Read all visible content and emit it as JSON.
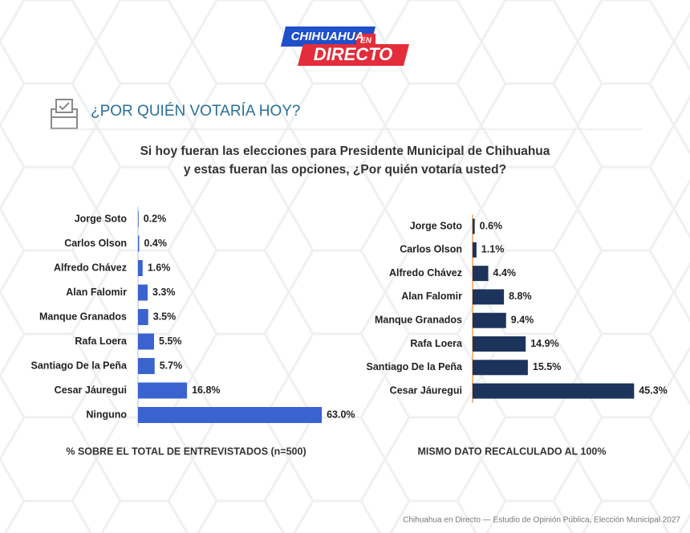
{
  "header": {
    "logo": {
      "line1": "CHIHUAHUA",
      "badge": "EN",
      "line2": "DIRECTO"
    },
    "section_title": "¿POR QUIÉN VOTARÍA HOY?",
    "question": [
      "Si hoy fueran las elecciones para Presidente Municipal de Chihuahua",
      "y estas fueran las opciones, ¿Por quién votaría usted?"
    ]
  },
  "chart_data": [
    {
      "type": "bar",
      "orientation": "horizontal",
      "caption": "% SOBRE EL TOTAL DE ENTREVISTADOS (n=500)",
      "categories": [
        "Jorge Soto",
        "Carlos Olson",
        "Alfredo Chávez",
        "Alan Falomir",
        "Manque Granados",
        "Rafa Loera",
        "Santiago De la Peña",
        "Cesar Jáuregui",
        "Ninguno"
      ],
      "values": [
        0.2,
        0.4,
        1.6,
        3.3,
        3.5,
        5.5,
        5.7,
        16.8,
        63.0
      ],
      "value_labels": [
        "0.2%",
        "0.4%",
        "1.6%",
        "3.3%",
        "3.5%",
        "5.5%",
        "5.7%",
        "16.8%",
        "63.0%"
      ],
      "color": "#3a63d0",
      "xlim": [
        0,
        66
      ]
    },
    {
      "type": "bar",
      "orientation": "horizontal",
      "caption": "MISMO DATO RECALCULADO AL 100%",
      "categories": [
        "Jorge Soto",
        "Carlos Olson",
        "Alfredo Chávez",
        "Alan Falomir",
        "Manque Granados",
        "Rafa Loera",
        "Santiago De la Peña",
        "Cesar Jáuregui"
      ],
      "values": [
        0.6,
        1.1,
        4.4,
        8.8,
        9.4,
        14.9,
        15.5,
        45.3
      ],
      "value_labels": [
        "0.6%",
        "1.1%",
        "4.4%",
        "8.8%",
        "9.4%",
        "14.9%",
        "15.5%",
        "45.3%"
      ],
      "color": "#1c335b",
      "xlim": [
        0,
        54
      ]
    }
  ],
  "footer": "Chihuahua en Directo — Estudio de Opinión Pública, Elección Municipal 2027"
}
